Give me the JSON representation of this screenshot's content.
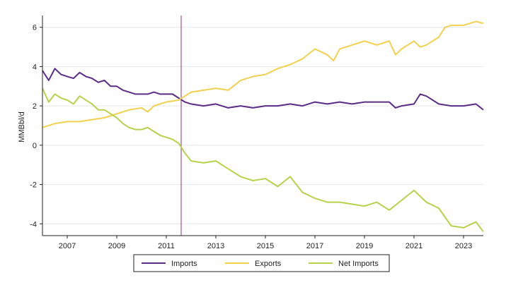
{
  "chart_data": {
    "type": "line",
    "title": "",
    "xlabel": "",
    "ylabel": "MMBbl/d",
    "xlim": [
      2006.0,
      2023.8
    ],
    "ylim": [
      -4.6,
      6.6
    ],
    "x_ticks": [
      2007,
      2009,
      2011,
      2013,
      2015,
      2017,
      2019,
      2021,
      2023
    ],
    "y_ticks": [
      -4,
      -2,
      0,
      2,
      4,
      6
    ],
    "grid": "horizontal",
    "legend_position": "bottom",
    "annotations": {
      "vline_x": 2011.6,
      "vline_color": "#a0558c"
    },
    "series": [
      {
        "name": "Imports",
        "color": "#5b2c86",
        "x": [
          2006.0,
          2006.25,
          2006.5,
          2006.75,
          2007.0,
          2007.25,
          2007.5,
          2007.75,
          2008.0,
          2008.25,
          2008.5,
          2008.75,
          2009.0,
          2009.25,
          2009.5,
          2009.75,
          2010.0,
          2010.25,
          2010.5,
          2010.75,
          2011.0,
          2011.25,
          2011.5,
          2011.75,
          2012.0,
          2012.5,
          2013.0,
          2013.5,
          2014.0,
          2014.5,
          2015.0,
          2015.5,
          2016.0,
          2016.5,
          2017.0,
          2017.5,
          2018.0,
          2018.5,
          2019.0,
          2019.5,
          2020.0,
          2020.25,
          2020.5,
          2021.0,
          2021.25,
          2021.5,
          2022.0,
          2022.5,
          2023.0,
          2023.5,
          2023.8
        ],
        "values": [
          3.8,
          3.3,
          3.9,
          3.6,
          3.5,
          3.4,
          3.7,
          3.5,
          3.4,
          3.2,
          3.3,
          3.0,
          3.0,
          2.8,
          2.7,
          2.6,
          2.6,
          2.6,
          2.7,
          2.6,
          2.6,
          2.6,
          2.4,
          2.2,
          2.1,
          2.0,
          2.1,
          1.9,
          2.0,
          1.9,
          2.0,
          2.0,
          2.1,
          2.0,
          2.2,
          2.1,
          2.2,
          2.1,
          2.2,
          2.2,
          2.2,
          1.9,
          2.0,
          2.1,
          2.6,
          2.5,
          2.1,
          2.0,
          2.0,
          2.1,
          1.8
        ]
      },
      {
        "name": "Exports",
        "color": "#f2d04e",
        "x": [
          2006.0,
          2006.5,
          2007.0,
          2007.5,
          2008.0,
          2008.5,
          2009.0,
          2009.5,
          2010.0,
          2010.25,
          2010.5,
          2011.0,
          2011.5,
          2011.75,
          2012.0,
          2012.5,
          2013.0,
          2013.5,
          2014.0,
          2014.5,
          2015.0,
          2015.5,
          2016.0,
          2016.5,
          2017.0,
          2017.5,
          2017.75,
          2018.0,
          2018.5,
          2019.0,
          2019.5,
          2020.0,
          2020.25,
          2020.5,
          2021.0,
          2021.25,
          2021.5,
          2022.0,
          2022.25,
          2022.5,
          2023.0,
          2023.5,
          2023.8
        ],
        "values": [
          0.9,
          1.1,
          1.2,
          1.2,
          1.3,
          1.4,
          1.6,
          1.8,
          1.9,
          1.7,
          2.0,
          2.2,
          2.3,
          2.5,
          2.7,
          2.8,
          2.9,
          2.8,
          3.3,
          3.5,
          3.6,
          3.9,
          4.1,
          4.4,
          4.9,
          4.6,
          4.3,
          4.9,
          5.1,
          5.3,
          5.1,
          5.3,
          4.6,
          4.9,
          5.3,
          5.0,
          5.1,
          5.5,
          6.0,
          6.1,
          6.1,
          6.3,
          6.2
        ]
      },
      {
        "name": "Net Imports",
        "color": "#b6d14a",
        "x": [
          2006.0,
          2006.25,
          2006.5,
          2006.75,
          2007.0,
          2007.25,
          2007.5,
          2007.75,
          2008.0,
          2008.25,
          2008.5,
          2008.75,
          2009.0,
          2009.25,
          2009.5,
          2009.75,
          2010.0,
          2010.25,
          2010.5,
          2010.75,
          2011.0,
          2011.25,
          2011.5,
          2011.75,
          2012.0,
          2012.5,
          2013.0,
          2013.5,
          2014.0,
          2014.5,
          2015.0,
          2015.5,
          2016.0,
          2016.5,
          2017.0,
          2017.5,
          2018.0,
          2018.5,
          2019.0,
          2019.5,
          2020.0,
          2020.5,
          2021.0,
          2021.5,
          2022.0,
          2022.5,
          2023.0,
          2023.5,
          2023.8
        ],
        "values": [
          2.9,
          2.2,
          2.6,
          2.4,
          2.3,
          2.1,
          2.5,
          2.3,
          2.1,
          1.8,
          1.8,
          1.6,
          1.4,
          1.1,
          0.9,
          0.8,
          0.8,
          0.9,
          0.7,
          0.5,
          0.4,
          0.3,
          0.1,
          -0.4,
          -0.8,
          -0.9,
          -0.8,
          -1.2,
          -1.6,
          -1.8,
          -1.7,
          -2.1,
          -1.6,
          -2.4,
          -2.7,
          -2.9,
          -2.9,
          -3.0,
          -3.1,
          -2.9,
          -3.3,
          -2.8,
          -2.3,
          -2.9,
          -3.2,
          -4.1,
          -4.2,
          -3.9,
          -4.4
        ]
      }
    ]
  }
}
